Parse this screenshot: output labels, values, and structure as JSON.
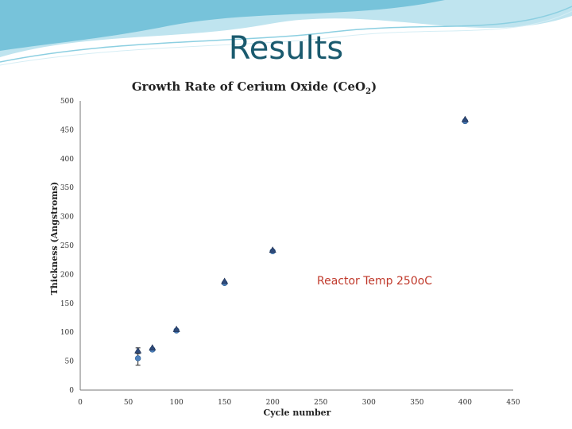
{
  "slide": {
    "title": "Results"
  },
  "chart_data": {
    "type": "scatter",
    "title": {
      "prefix": "Growth Rate of Cerium Oxide (CeO",
      "subscript": "2",
      "suffix": ")"
    },
    "xlabel": "Cycle number",
    "ylabel": "Thickness (Angstroms)",
    "xlim": [
      0,
      450
    ],
    "ylim": [
      0,
      500
    ],
    "xticks": [
      0,
      50,
      100,
      150,
      200,
      250,
      300,
      350,
      400,
      450
    ],
    "yticks": [
      0,
      50,
      100,
      150,
      200,
      250,
      300,
      350,
      400,
      450,
      500
    ],
    "grid": false,
    "annotation": "Reactor Temp 250oC",
    "series": [
      {
        "marker": "circle",
        "color": "#4f81bd",
        "points": [
          {
            "x": 60,
            "y": 55,
            "err": 12
          },
          {
            "x": 75,
            "y": 70
          },
          {
            "x": 100,
            "y": 103
          },
          {
            "x": 150,
            "y": 185
          },
          {
            "x": 200,
            "y": 240
          },
          {
            "x": 400,
            "y": 465
          }
        ]
      },
      {
        "marker": "triangle",
        "color": "#2e4a7a",
        "points": [
          {
            "x": 60,
            "y": 68,
            "err": 5
          },
          {
            "x": 75,
            "y": 73
          },
          {
            "x": 100,
            "y": 105
          },
          {
            "x": 150,
            "y": 188
          },
          {
            "x": 200,
            "y": 242
          },
          {
            "x": 400,
            "y": 468
          }
        ]
      }
    ]
  }
}
